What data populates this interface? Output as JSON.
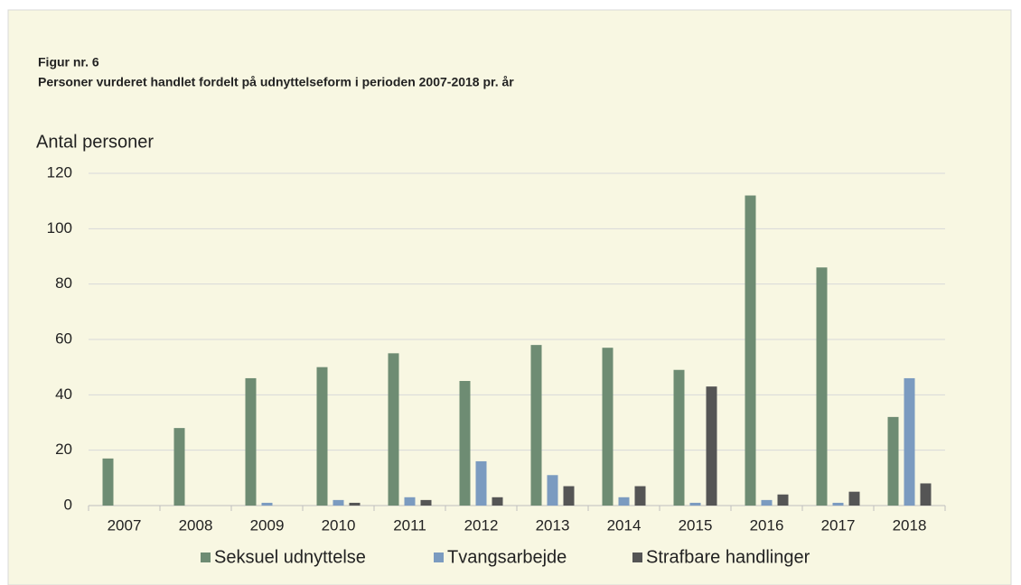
{
  "chart_data": {
    "type": "bar",
    "title": "Figur nr. 6",
    "subtitle": "Personer vurderet handlet fordelt på udnyttelseform i perioden 2007-2018 pr. år",
    "y_label": "Antal personer",
    "categories": [
      "2007",
      "2008",
      "2009",
      "2010",
      "2011",
      "2012",
      "2013",
      "2014",
      "2015",
      "2016",
      "2017",
      "2018"
    ],
    "series": [
      {
        "name": "Seksuel udnyttelse",
        "color": "#6e8c73",
        "values": [
          17,
          28,
          46,
          50,
          55,
          45,
          58,
          57,
          49,
          112,
          86,
          32
        ]
      },
      {
        "name": "Tvangsarbejde",
        "color": "#7b9bc0",
        "values": [
          0,
          0,
          1,
          2,
          3,
          16,
          11,
          3,
          1,
          2,
          1,
          46
        ]
      },
      {
        "name": "Strafbare handlinger",
        "color": "#555555",
        "values": [
          0,
          0,
          0,
          1,
          2,
          3,
          7,
          7,
          43,
          4,
          5,
          8
        ]
      }
    ],
    "ylim": [
      0,
      120
    ],
    "yticks": [
      0,
      20,
      40,
      60,
      80,
      100,
      120
    ],
    "grid": true,
    "legend": "bottom"
  }
}
